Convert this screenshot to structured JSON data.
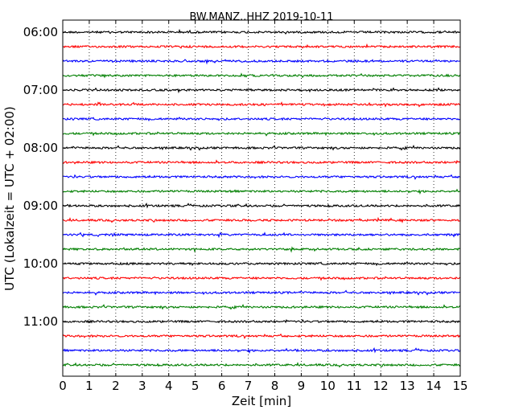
{
  "chart_data": {
    "type": "line",
    "title": "BW.MANZ..HHZ 2019-10-11",
    "xlabel": "Zeit  [min]",
    "ylabel": "UTC (Lokalzeit = UTC + 02:00)",
    "xlim": [
      0,
      15
    ],
    "x_ticks": [
      "0",
      "1",
      "2",
      "3",
      "4",
      "5",
      "6",
      "7",
      "8",
      "9",
      "10",
      "11",
      "12",
      "13",
      "14",
      "15"
    ],
    "y_ticks": [
      "06:00",
      "07:00",
      "08:00",
      "09:00",
      "10:00",
      "11:00"
    ],
    "grid": "vertical dotted at each minute",
    "rows_per_hour": 4,
    "row_colors": [
      "#000000",
      "#ff0000",
      "#0000ff",
      "#007f00"
    ],
    "traces": [
      {
        "label": "06:00"
      },
      {
        "label": "06:15"
      },
      {
        "label": "06:30"
      },
      {
        "label": "06:45"
      },
      {
        "label": "07:00"
      },
      {
        "label": "07:15"
      },
      {
        "label": "07:30"
      },
      {
        "label": "07:45"
      },
      {
        "label": "08:00"
      },
      {
        "label": "08:15"
      },
      {
        "label": "08:30"
      },
      {
        "label": "08:45"
      },
      {
        "label": "09:00"
      },
      {
        "label": "09:15"
      },
      {
        "label": "09:30"
      },
      {
        "label": "09:45"
      },
      {
        "label": "10:00"
      },
      {
        "label": "10:15"
      },
      {
        "label": "10:30"
      },
      {
        "label": "10:45"
      },
      {
        "label": "11:00"
      },
      {
        "label": "11:15"
      },
      {
        "label": "11:30"
      },
      {
        "label": "11:45"
      }
    ]
  }
}
